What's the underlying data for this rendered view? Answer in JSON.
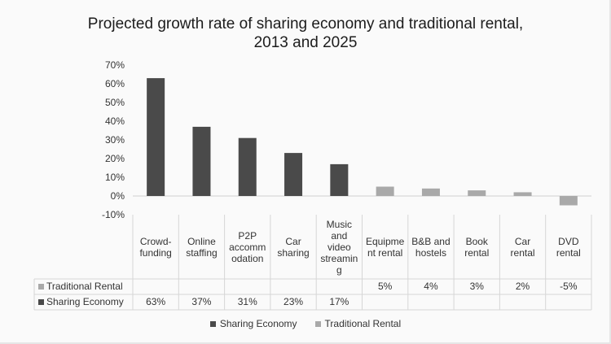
{
  "chart_data": {
    "type": "bar",
    "title": "Projected growth rate of sharing economy and traditional rental, 2013 and 2025",
    "title_lines": [
      "Projected growth rate of sharing economy and traditional rental,",
      "2013 and 2025"
    ],
    "ylim": [
      -10,
      70
    ],
    "y_ticks": [
      70,
      60,
      50,
      40,
      30,
      20,
      10,
      0,
      -10
    ],
    "y_tick_labels": [
      "70%",
      "60%",
      "50%",
      "40%",
      "30%",
      "20%",
      "10%",
      "0%",
      "-10%"
    ],
    "grid": false,
    "legend_position": "bottom",
    "categories": [
      [
        "Crowd-",
        "funding"
      ],
      [
        "Online",
        "staffing"
      ],
      [
        "P2P",
        "accomm",
        "odation"
      ],
      [
        "Car",
        "sharing"
      ],
      [
        "Music",
        "and",
        "video",
        "streamin",
        "g"
      ],
      [
        "Equipme",
        "nt rental"
      ],
      [
        "B&B and",
        "hostels"
      ],
      [
        "Book",
        "rental"
      ],
      [
        "Car",
        "rental"
      ],
      [
        "DVD",
        "rental"
      ]
    ],
    "series": [
      {
        "name": "Traditional Rental",
        "color": "#a9a9a9",
        "values": [
          null,
          null,
          null,
          null,
          null,
          5,
          4,
          3,
          2,
          -5
        ],
        "table_labels": [
          "",
          "",
          "",
          "",
          "",
          "5%",
          "4%",
          "3%",
          "2%",
          "-5%"
        ]
      },
      {
        "name": "Sharing Economy",
        "color": "#4a4a4a",
        "values": [
          63,
          37,
          31,
          23,
          17,
          null,
          null,
          null,
          null,
          null
        ],
        "table_labels": [
          "63%",
          "37%",
          "31%",
          "23%",
          "17%",
          "",
          "",
          "",
          "",
          ""
        ]
      }
    ],
    "legend": [
      "Sharing Economy",
      "Traditional Rental"
    ]
  }
}
